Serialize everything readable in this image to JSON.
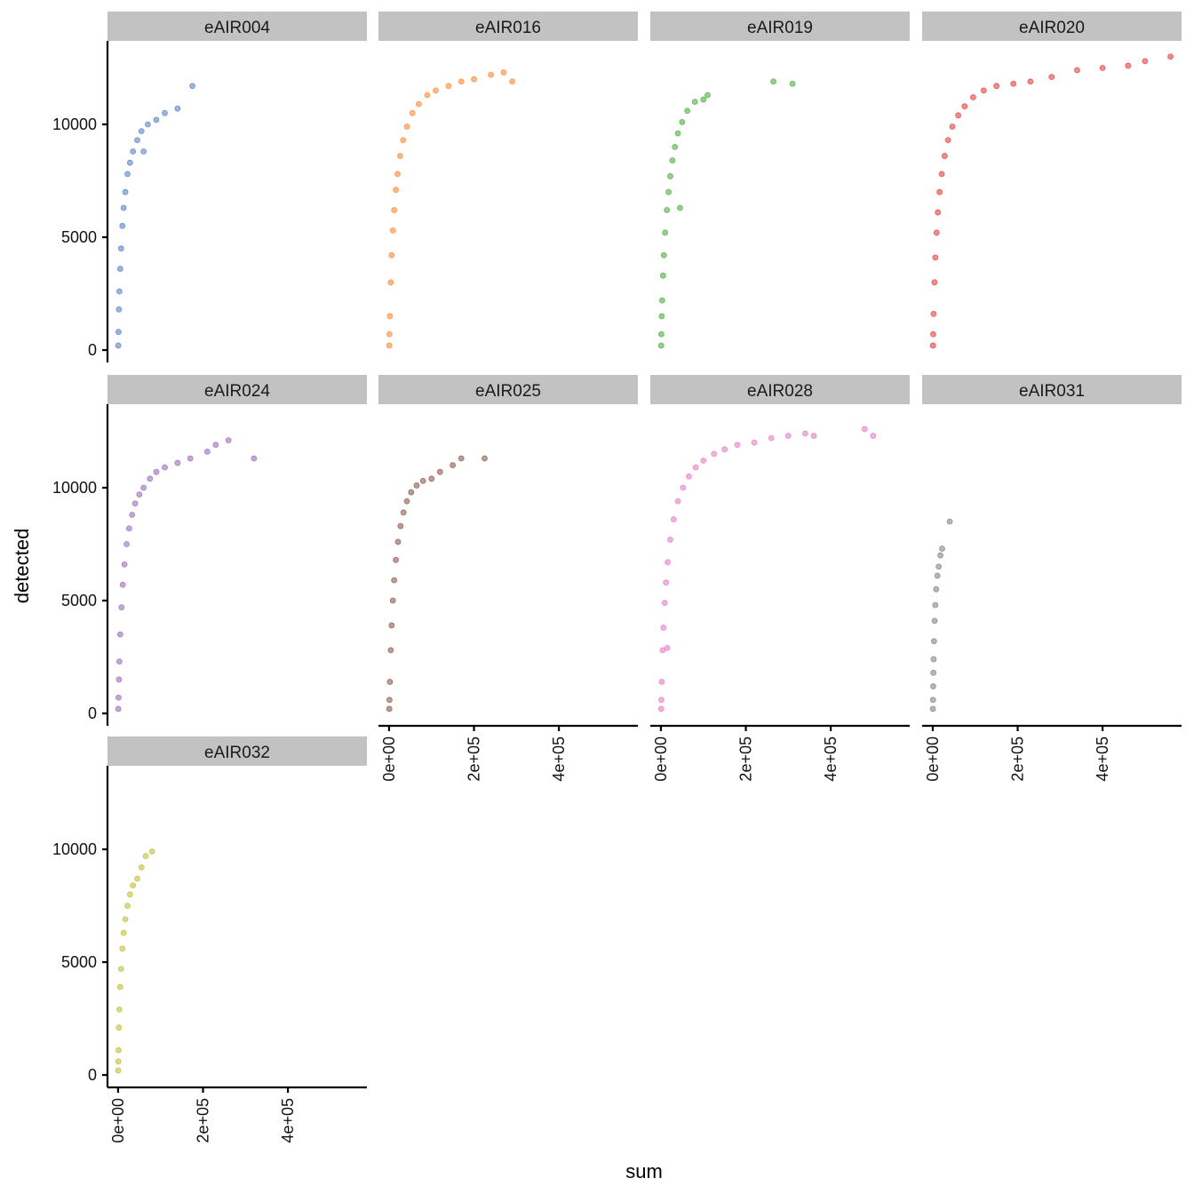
{
  "chart_data": {
    "type": "scatter",
    "layout": "facet_wrap",
    "xlabel": "sum",
    "ylabel": "detected",
    "xlim": [
      -25000,
      586000
    ],
    "ylim": [
      -550,
      13700
    ],
    "x_ticks": [
      0,
      200000,
      400000
    ],
    "x_tick_labels": [
      "0e+00",
      "2e+05",
      "4e+05"
    ],
    "y_ticks": [
      0,
      5000,
      10000
    ],
    "y_tick_labels": [
      "0",
      "5000",
      "10000"
    ],
    "grid": false,
    "point_opacity": 0.6,
    "panels": [
      {
        "name": "eAIR004",
        "color": "#5b84c4",
        "points": [
          [
            500,
            200
          ],
          [
            1000,
            800
          ],
          [
            2000,
            1800
          ],
          [
            3000,
            2600
          ],
          [
            5000,
            3600
          ],
          [
            7000,
            4500
          ],
          [
            10000,
            5500
          ],
          [
            13000,
            6300
          ],
          [
            17000,
            7000
          ],
          [
            22000,
            7800
          ],
          [
            28000,
            8300
          ],
          [
            35000,
            8800
          ],
          [
            45000,
            9300
          ],
          [
            55000,
            9700
          ],
          [
            60000,
            8800
          ],
          [
            70000,
            10000
          ],
          [
            90000,
            10200
          ],
          [
            110000,
            10500
          ],
          [
            140000,
            10700
          ],
          [
            175000,
            11700
          ]
        ]
      },
      {
        "name": "eAIR016",
        "color": "#ff8a36",
        "points": [
          [
            500,
            200
          ],
          [
            1000,
            700
          ],
          [
            2000,
            1500
          ],
          [
            4000,
            3000
          ],
          [
            6000,
            4200
          ],
          [
            9000,
            5300
          ],
          [
            12000,
            6200
          ],
          [
            16000,
            7100
          ],
          [
            20000,
            7800
          ],
          [
            26000,
            8600
          ],
          [
            33000,
            9300
          ],
          [
            42000,
            9900
          ],
          [
            55000,
            10500
          ],
          [
            70000,
            10900
          ],
          [
            90000,
            11300
          ],
          [
            110000,
            11500
          ],
          [
            140000,
            11700
          ],
          [
            170000,
            11900
          ],
          [
            200000,
            12000
          ],
          [
            240000,
            12200
          ],
          [
            270000,
            12300
          ],
          [
            290000,
            11900
          ]
        ]
      },
      {
        "name": "eAIR019",
        "color": "#52ad45",
        "points": [
          [
            500,
            200
          ],
          [
            1000,
            700
          ],
          [
            2000,
            1500
          ],
          [
            3000,
            2200
          ],
          [
            5000,
            3300
          ],
          [
            7000,
            4200
          ],
          [
            10000,
            5200
          ],
          [
            14000,
            6200
          ],
          [
            18000,
            7000
          ],
          [
            22000,
            7700
          ],
          [
            27000,
            8400
          ],
          [
            33000,
            9000
          ],
          [
            40000,
            9600
          ],
          [
            50000,
            10100
          ],
          [
            62000,
            10600
          ],
          [
            80000,
            11000
          ],
          [
            100000,
            11100
          ],
          [
            110000,
            11300
          ],
          [
            45000,
            6300
          ],
          [
            265000,
            11900
          ],
          [
            310000,
            11800
          ]
        ]
      },
      {
        "name": "eAIR020",
        "color": "#e5403f",
        "points": [
          [
            500,
            200
          ],
          [
            1000,
            700
          ],
          [
            2000,
            1600
          ],
          [
            4000,
            3000
          ],
          [
            6000,
            4100
          ],
          [
            9000,
            5200
          ],
          [
            12000,
            6100
          ],
          [
            16000,
            7000
          ],
          [
            21000,
            7800
          ],
          [
            28000,
            8600
          ],
          [
            36000,
            9300
          ],
          [
            46000,
            9900
          ],
          [
            60000,
            10400
          ],
          [
            75000,
            10800
          ],
          [
            95000,
            11200
          ],
          [
            120000,
            11500
          ],
          [
            150000,
            11700
          ],
          [
            190000,
            11800
          ],
          [
            230000,
            11900
          ],
          [
            280000,
            12100
          ],
          [
            340000,
            12400
          ],
          [
            400000,
            12500
          ],
          [
            460000,
            12600
          ],
          [
            500000,
            12800
          ],
          [
            560000,
            13000
          ]
        ]
      },
      {
        "name": "eAIR024",
        "color": "#9a6dc0",
        "points": [
          [
            500,
            200
          ],
          [
            1000,
            700
          ],
          [
            2000,
            1500
          ],
          [
            3000,
            2300
          ],
          [
            5000,
            3500
          ],
          [
            8000,
            4700
          ],
          [
            11000,
            5700
          ],
          [
            15000,
            6600
          ],
          [
            20000,
            7500
          ],
          [
            26000,
            8200
          ],
          [
            33000,
            8800
          ],
          [
            40000,
            9300
          ],
          [
            50000,
            9700
          ],
          [
            60000,
            10000
          ],
          [
            75000,
            10400
          ],
          [
            90000,
            10700
          ],
          [
            110000,
            10900
          ],
          [
            140000,
            11100
          ],
          [
            170000,
            11300
          ],
          [
            210000,
            11600
          ],
          [
            230000,
            11900
          ],
          [
            260000,
            12100
          ],
          [
            320000,
            11300
          ]
        ]
      },
      {
        "name": "eAIR025",
        "color": "#8c5b50",
        "points": [
          [
            500,
            200
          ],
          [
            1000,
            600
          ],
          [
            2000,
            1400
          ],
          [
            4000,
            2800
          ],
          [
            6000,
            3900
          ],
          [
            9000,
            5000
          ],
          [
            12000,
            5900
          ],
          [
            16000,
            6800
          ],
          [
            21000,
            7600
          ],
          [
            27000,
            8300
          ],
          [
            34000,
            8900
          ],
          [
            42000,
            9400
          ],
          [
            52000,
            9800
          ],
          [
            65000,
            10100
          ],
          [
            80000,
            10300
          ],
          [
            100000,
            10400
          ],
          [
            120000,
            10700
          ],
          [
            150000,
            11000
          ],
          [
            170000,
            11300
          ],
          [
            225000,
            11300
          ]
        ]
      },
      {
        "name": "eAIR028",
        "color": "#e57fc4",
        "points": [
          [
            500,
            200
          ],
          [
            1000,
            600
          ],
          [
            2000,
            1400
          ],
          [
            4000,
            2800
          ],
          [
            6000,
            3800
          ],
          [
            9000,
            4900
          ],
          [
            12000,
            5800
          ],
          [
            16000,
            6700
          ],
          [
            22000,
            7700
          ],
          [
            30000,
            8600
          ],
          [
            40000,
            9400
          ],
          [
            52000,
            10000
          ],
          [
            66000,
            10500
          ],
          [
            82000,
            10900
          ],
          [
            100000,
            11200
          ],
          [
            125000,
            11500
          ],
          [
            150000,
            11700
          ],
          [
            180000,
            11900
          ],
          [
            220000,
            12000
          ],
          [
            260000,
            12200
          ],
          [
            300000,
            12300
          ],
          [
            340000,
            12400
          ],
          [
            360000,
            12300
          ],
          [
            480000,
            12600
          ],
          [
            500000,
            12300
          ],
          [
            15000,
            2900
          ]
        ]
      },
      {
        "name": "eAIR031",
        "color": "#858585",
        "points": [
          [
            300,
            200
          ],
          [
            600,
            600
          ],
          [
            1000,
            1200
          ],
          [
            1500,
            1800
          ],
          [
            2000,
            2400
          ],
          [
            3000,
            3200
          ],
          [
            4500,
            4100
          ],
          [
            6000,
            4800
          ],
          [
            8000,
            5500
          ],
          [
            11000,
            6100
          ],
          [
            14000,
            6500
          ],
          [
            18000,
            7000
          ],
          [
            22000,
            7300
          ],
          [
            40000,
            8500
          ]
        ]
      },
      {
        "name": "eAIR032",
        "color": "#c0bf3a",
        "points": [
          [
            300,
            200
          ],
          [
            600,
            600
          ],
          [
            1000,
            1100
          ],
          [
            2000,
            2100
          ],
          [
            3000,
            2900
          ],
          [
            5000,
            3900
          ],
          [
            7000,
            4700
          ],
          [
            10000,
            5600
          ],
          [
            13000,
            6300
          ],
          [
            17000,
            6900
          ],
          [
            22000,
            7500
          ],
          [
            28000,
            8000
          ],
          [
            35000,
            8400
          ],
          [
            45000,
            8700
          ],
          [
            55000,
            9200
          ],
          [
            65000,
            9700
          ],
          [
            80000,
            9900
          ]
        ]
      }
    ]
  }
}
